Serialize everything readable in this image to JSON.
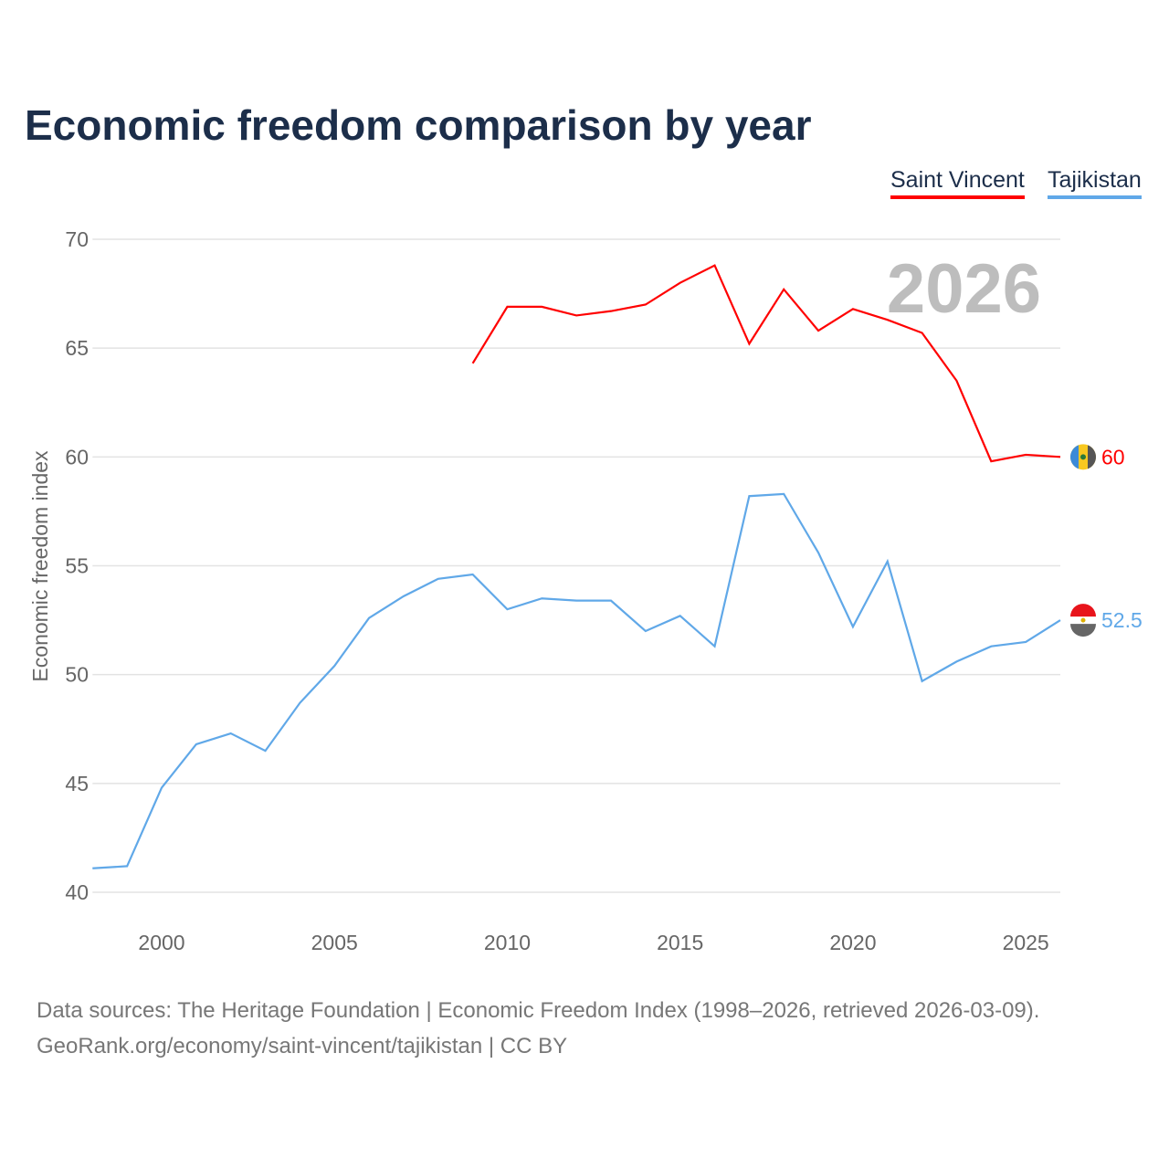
{
  "chart_data": {
    "type": "line",
    "title": "Economic freedom comparison by year",
    "xlabel": "",
    "ylabel": "Economic freedom index",
    "xlim": [
      1998,
      2026
    ],
    "ylim": [
      40,
      70
    ],
    "xticks": [
      2000,
      2005,
      2010,
      2015,
      2020,
      2025
    ],
    "yticks": [
      40,
      45,
      50,
      55,
      60,
      65,
      70
    ],
    "grid": true,
    "year_watermark": "2026",
    "legend_position": "top-right",
    "series": [
      {
        "name": "Saint Vincent",
        "color": "#ff0000",
        "end_label": "60",
        "x": [
          2009,
          2010,
          2011,
          2012,
          2013,
          2014,
          2015,
          2016,
          2017,
          2018,
          2019,
          2020,
          2021,
          2022,
          2023,
          2024,
          2025,
          2026
        ],
        "values": [
          64.3,
          66.9,
          66.9,
          66.5,
          66.7,
          67.0,
          68.0,
          68.8,
          65.2,
          67.7,
          65.8,
          66.8,
          66.3,
          65.7,
          63.5,
          59.8,
          60.1,
          60.0
        ]
      },
      {
        "name": "Tajikistan",
        "color": "#60a8e8",
        "end_label": "52.5",
        "x": [
          1998,
          1999,
          2000,
          2001,
          2002,
          2003,
          2004,
          2005,
          2006,
          2007,
          2008,
          2009,
          2010,
          2011,
          2012,
          2013,
          2014,
          2015,
          2016,
          2017,
          2018,
          2019,
          2020,
          2021,
          2022,
          2023,
          2024,
          2025,
          2026
        ],
        "values": [
          41.1,
          41.2,
          44.8,
          46.8,
          47.3,
          46.5,
          48.7,
          50.4,
          52.6,
          53.6,
          54.4,
          54.6,
          53.0,
          53.5,
          53.4,
          53.4,
          52.0,
          52.7,
          51.3,
          58.2,
          58.3,
          55.6,
          52.2,
          55.2,
          49.7,
          50.6,
          51.3,
          51.5,
          52.5
        ]
      }
    ]
  },
  "source": {
    "line1": "Data sources: The Heritage Foundation | Economic Freedom Index (1998–2026, retrieved 2026-03-09).",
    "line2": "GeoRank.org/economy/saint-vincent/tajikistan | CC BY"
  }
}
